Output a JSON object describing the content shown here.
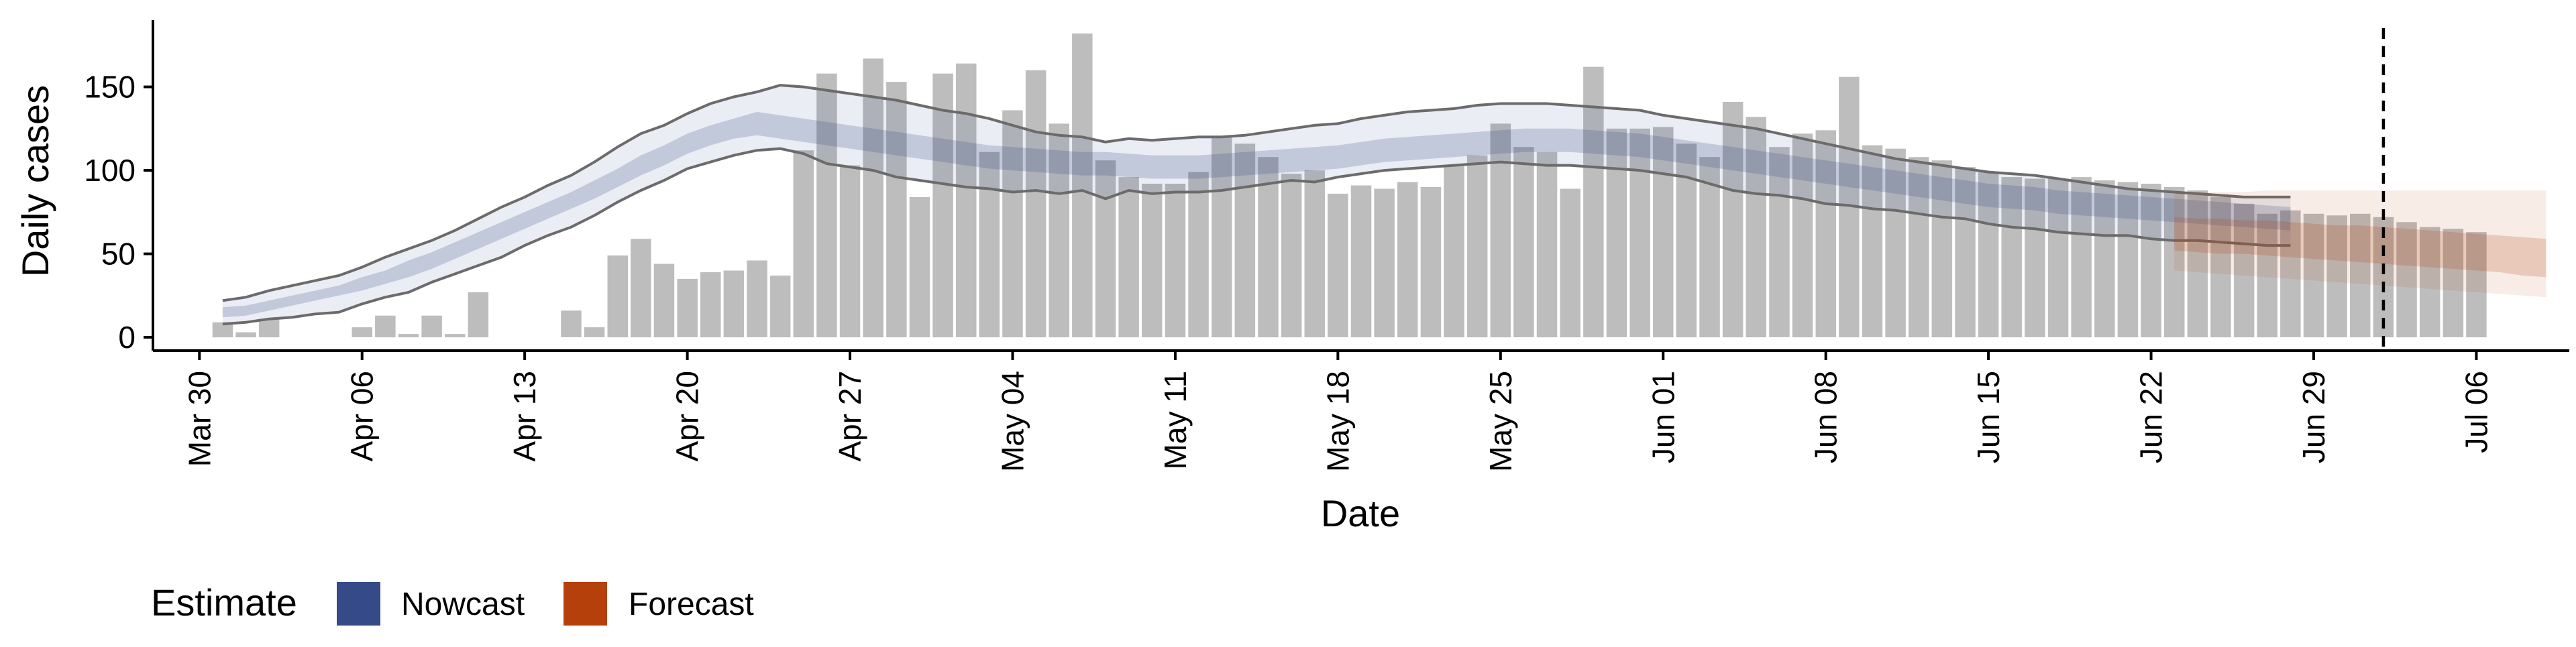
{
  "chart_data": {
    "type": "bar",
    "title": "",
    "xlabel": "Date",
    "ylabel": "Daily cases",
    "ylim": [
      -8,
      190
    ],
    "yticks": [
      0,
      50,
      100,
      150
    ],
    "x_start": "2020-03-30",
    "xlim": [
      "2020-03-28",
      "2020-07-10"
    ],
    "xticks": [
      "Mar 30",
      "Apr 06",
      "Apr 13",
      "Apr 20",
      "Apr 27",
      "May 04",
      "May 11",
      "May 18",
      "May 25",
      "Jun 01",
      "Jun 08",
      "Jun 15",
      "Jun 22",
      "Jun 29",
      "Jul 06"
    ],
    "forecast_date": "2020-07-02",
    "grid": false,
    "legend": {
      "position": "bottom-left",
      "title": "Estimate",
      "entries": [
        {
          "label": "Nowcast",
          "color": "#354b87"
        },
        {
          "label": "Forecast",
          "color": "#b5400c"
        }
      ]
    },
    "observed_cases": {
      "first_date": "2020-03-31",
      "values": [
        9,
        3,
        11,
        0,
        0,
        0,
        6,
        13,
        2,
        13,
        2,
        27,
        0,
        0,
        0,
        16,
        6,
        49,
        59,
        44,
        35,
        39,
        40,
        46,
        37,
        112,
        158,
        103,
        167,
        153,
        84,
        158,
        164,
        111,
        136,
        160,
        128,
        182,
        106,
        96,
        92,
        92,
        99,
        120,
        116,
        108,
        98,
        100,
        86,
        91,
        89,
        93,
        90,
        103,
        109,
        128,
        114,
        111,
        89,
        162,
        125,
        125,
        126,
        116,
        108,
        141,
        132,
        114,
        122,
        124,
        156,
        115,
        113,
        108,
        106,
        102,
        99,
        96,
        95,
        95,
        96,
        94,
        93,
        92,
        90,
        88,
        84,
        80,
        74,
        76,
        74,
        73,
        74,
        72,
        69,
        66,
        65,
        63
      ]
    },
    "nowcast": {
      "first_date": "2020-03-31",
      "median": [
        15,
        16,
        19,
        22,
        25,
        28,
        32,
        36,
        41,
        46,
        52,
        58,
        64,
        70,
        76,
        82,
        88,
        95,
        103,
        109,
        116,
        121,
        125,
        128,
        126,
        124,
        122,
        120,
        118,
        116,
        114,
        112,
        110,
        108,
        107,
        106,
        105,
        104,
        104,
        103,
        102,
        102,
        102,
        103,
        104,
        105,
        106,
        107,
        108,
        110,
        112,
        113,
        114,
        115,
        116,
        117,
        118,
        118,
        118,
        117,
        116,
        115,
        113,
        111,
        109,
        107,
        105,
        103,
        101,
        99,
        97,
        95,
        93,
        91,
        89,
        87,
        85,
        84,
        83,
        81,
        80,
        79,
        78,
        77,
        76,
        75,
        74,
        73,
        72,
        71
      ],
      "inner_lower": [
        12,
        13,
        16,
        19,
        22,
        25,
        28,
        32,
        36,
        41,
        47,
        53,
        59,
        65,
        71,
        77,
        83,
        90,
        97,
        103,
        110,
        115,
        119,
        121,
        119,
        117,
        115,
        113,
        111,
        109,
        107,
        105,
        103,
        101,
        100,
        99,
        98,
        97,
        97,
        96,
        95,
        95,
        95,
        96,
        97,
        98,
        99,
        100,
        101,
        103,
        105,
        106,
        107,
        108,
        109,
        110,
        111,
        111,
        111,
        110,
        109,
        108,
        106,
        104,
        102,
        100,
        98,
        96,
        94,
        92,
        90,
        88,
        86,
        84,
        82,
        80,
        78,
        77,
        76,
        74,
        73,
        72,
        71,
        70,
        69,
        68,
        67,
        66,
        65,
        64
      ],
      "inner_upper": [
        18,
        19,
        22,
        25,
        28,
        31,
        36,
        40,
        46,
        51,
        57,
        63,
        69,
        75,
        81,
        87,
        94,
        101,
        109,
        115,
        122,
        127,
        131,
        135,
        133,
        131,
        129,
        127,
        125,
        123,
        121,
        119,
        117,
        115,
        114,
        113,
        112,
        111,
        111,
        110,
        109,
        109,
        109,
        110,
        111,
        112,
        113,
        114,
        115,
        117,
        119,
        120,
        121,
        122,
        123,
        124,
        125,
        125,
        125,
        124,
        123,
        122,
        120,
        118,
        116,
        114,
        112,
        110,
        108,
        106,
        104,
        102,
        100,
        98,
        96,
        94,
        92,
        91,
        90,
        88,
        87,
        86,
        85,
        84,
        83,
        82,
        81,
        80,
        79,
        78
      ],
      "outer_lower": [
        8,
        9,
        11,
        12,
        14,
        15,
        20,
        24,
        27,
        33,
        38,
        43,
        48,
        55,
        61,
        66,
        73,
        81,
        88,
        94,
        101,
        105,
        109,
        112,
        113,
        110,
        104,
        102,
        100,
        96,
        94,
        92,
        90,
        89,
        87,
        88,
        86,
        88,
        83,
        88,
        86,
        87,
        87,
        88,
        90,
        92,
        94,
        93,
        96,
        98,
        100,
        101,
        102,
        103,
        104,
        105,
        104,
        103,
        103,
        102,
        101,
        100,
        98,
        96,
        92,
        88,
        86,
        85,
        83,
        80,
        79,
        77,
        76,
        74,
        72,
        71,
        68,
        66,
        65,
        63,
        62,
        61,
        61,
        59,
        58,
        58,
        57,
        56,
        55,
        55
      ],
      "outer_upper": [
        22,
        24,
        28,
        31,
        34,
        37,
        42,
        48,
        53,
        58,
        64,
        71,
        78,
        84,
        91,
        97,
        105,
        114,
        122,
        127,
        134,
        140,
        144,
        147,
        151,
        150,
        148,
        146,
        144,
        142,
        139,
        136,
        134,
        131,
        127,
        123,
        121,
        120,
        117,
        119,
        118,
        119,
        120,
        120,
        121,
        123,
        125,
        127,
        128,
        131,
        133,
        135,
        136,
        137,
        139,
        140,
        140,
        140,
        139,
        138,
        137,
        136,
        133,
        131,
        129,
        127,
        125,
        122,
        119,
        116,
        113,
        110,
        107,
        105,
        103,
        101,
        99,
        98,
        97,
        95,
        93,
        91,
        89,
        88,
        87,
        86,
        85,
        84,
        84,
        84
      ]
    },
    "forecast": {
      "first_date": "2020-06-23",
      "median": [
        62,
        61,
        60,
        60,
        59,
        58,
        57,
        56,
        56,
        55,
        54,
        53,
        52,
        51,
        50,
        48,
        47
      ],
      "inner_lower": [
        52,
        51,
        50,
        50,
        49,
        48,
        47,
        46,
        45,
        44,
        43,
        42,
        41,
        40,
        39,
        37,
        36
      ],
      "inner_upper": [
        72,
        71,
        71,
        70,
        70,
        69,
        68,
        67,
        67,
        66,
        65,
        64,
        63,
        62,
        61,
        60,
        59
      ],
      "outer_lower": [
        40,
        39,
        38,
        37,
        36,
        35,
        34,
        33,
        32,
        31,
        30,
        29,
        28,
        27,
        26,
        25,
        24
      ],
      "outer_upper": [
        87,
        87,
        87,
        87,
        88,
        88,
        88,
        88,
        88,
        88,
        88,
        88,
        88,
        88,
        88,
        88,
        88
      ]
    },
    "colors": {
      "bars": "#bdbdbd",
      "nowcast": "#354b87",
      "forecast": "#b5400c",
      "outline": "#6b6b6b",
      "axis": "#000000"
    }
  }
}
